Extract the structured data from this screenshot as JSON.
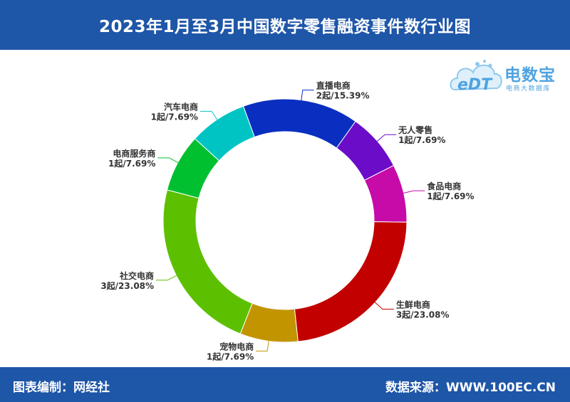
{
  "header": {
    "title": "2023年1月至3月中国数字零售融资事件数行业图"
  },
  "footer": {
    "left_label": "图表编制：",
    "left_value": "网经社",
    "right_label": "数据来源：",
    "right_value": "WWW.100EC.CN"
  },
  "logo": {
    "text": "电数宝",
    "sub": "电商大数据库",
    "badge": "eDT"
  },
  "colors": {
    "header_bg": "#1e56a8",
    "logo": "#4fa3e0"
  },
  "chart_data": {
    "type": "pie",
    "donut": true,
    "title": "",
    "start_category": "直播电商",
    "slices": [
      {
        "name": "直播电商",
        "value": 2,
        "label": "2起/15.39%",
        "color": "#0a2fc0"
      },
      {
        "name": "无人零售",
        "value": 1,
        "label": "1起/7.69%",
        "color": "#6a0cc8"
      },
      {
        "name": "食品电商",
        "value": 1,
        "label": "1起/7.69%",
        "color": "#c60ba8"
      },
      {
        "name": "生鲜电商",
        "value": 3,
        "label": "3起/23.08%",
        "color": "#c20000"
      },
      {
        "name": "宠物电商",
        "value": 1,
        "label": "1起/7.69%",
        "color": "#c29400"
      },
      {
        "name": "社交电商",
        "value": 3,
        "label": "3起/23.08%",
        "color": "#5cc000"
      },
      {
        "name": "电商服务商",
        "value": 1,
        "label": "1起/7.69%",
        "color": "#00c030"
      },
      {
        "name": "汽车电商",
        "value": 1,
        "label": "1起/7.69%",
        "color": "#00c4c4"
      }
    ]
  }
}
